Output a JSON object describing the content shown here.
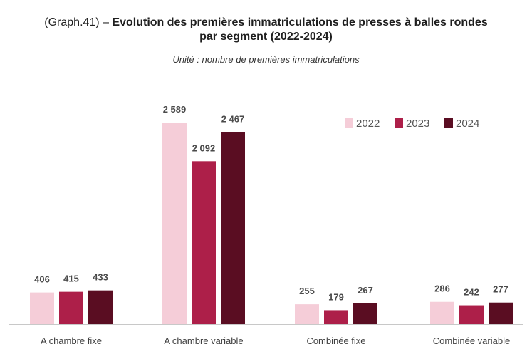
{
  "chart_data": {
    "type": "bar",
    "title_prefix": "(Graph.41) – ",
    "title_line1": "Evolution des premières immatriculations de presses à balles rondes",
    "title_line2": "par segment (2022-2024)",
    "subtitle": "Unité : nombre de premières immatriculations",
    "categories": [
      "A chambre fixe",
      "A chambre variable",
      "Combinée fixe",
      "Combinée variable"
    ],
    "series": [
      {
        "name": "2022",
        "color": "#f5cdd8",
        "values": [
          406,
          2589,
          255,
          286
        ],
        "labels": [
          "406",
          "2 589",
          "255",
          "286"
        ]
      },
      {
        "name": "2023",
        "color": "#ad1f49",
        "values": [
          415,
          2092,
          179,
          242
        ],
        "labels": [
          "415",
          "2 092",
          "179",
          "242"
        ]
      },
      {
        "name": "2024",
        "color": "#5a0d22",
        "values": [
          433,
          2467,
          267,
          277
        ],
        "labels": [
          "433",
          "2 467",
          "267",
          "277"
        ]
      }
    ],
    "ylim": [
      0,
      2589
    ],
    "grid": false,
    "legend_position": "top-right",
    "xlabel": "",
    "ylabel": ""
  }
}
